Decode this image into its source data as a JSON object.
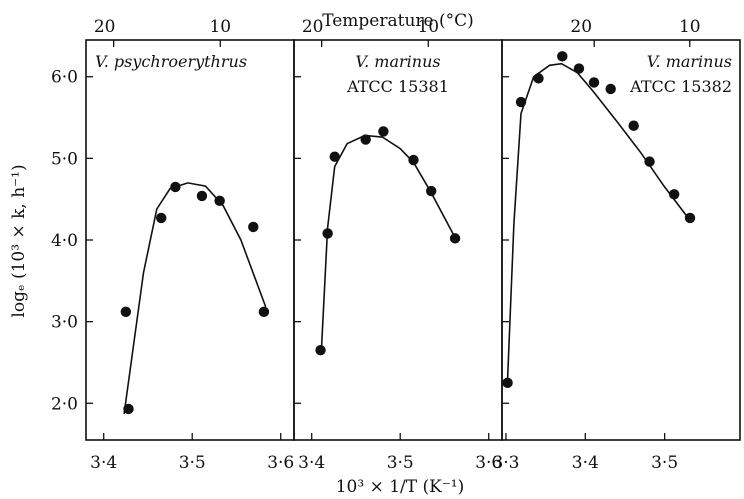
{
  "figure": {
    "top_axis_title": "Temperature (°C)",
    "bottom_axis_title": "10³ × 1/T (K⁻¹)",
    "y_axis_title": "logₑ (10³ × k, h⁻¹)"
  },
  "chart_data": [
    {
      "type": "scatter",
      "panel_label": [
        "V. psychroerythrus"
      ],
      "xlabel": "10³ × 1/T (K⁻¹)",
      "ylabel": "logₑ (10³ × k, h⁻¹)",
      "top_xlabel": "Temperature (°C)",
      "xlim": [
        3.38,
        3.615
      ],
      "ylim": [
        1.55,
        6.45
      ],
      "x_ticks": [
        3.4,
        3.5,
        3.6
      ],
      "x_tick_labels": [
        "3·4",
        "3·5",
        "3·6"
      ],
      "y_ticks": [
        2.0,
        3.0,
        4.0,
        5.0,
        6.0
      ],
      "y_tick_labels": [
        "2·0",
        "3·0",
        "4·0",
        "5·0",
        "6·0"
      ],
      "top_ticks": [
        20,
        10
      ],
      "top_tick_labels": [
        "20",
        "10"
      ],
      "points": {
        "x": [
          3.425,
          3.428,
          3.465,
          3.481,
          3.511,
          3.531,
          3.569,
          3.581
        ],
        "y": [
          3.12,
          1.93,
          4.27,
          4.65,
          4.54,
          4.48,
          4.16,
          3.12
        ]
      },
      "curve": {
        "x": [
          3.423,
          3.445,
          3.46,
          3.475,
          3.495,
          3.515,
          3.535,
          3.555,
          3.583
        ],
        "y": [
          1.87,
          3.6,
          4.38,
          4.63,
          4.7,
          4.66,
          4.42,
          4.0,
          3.18
        ]
      }
    },
    {
      "type": "scatter",
      "panel_label": [
        "V. marinus",
        "ATCC 15381"
      ],
      "xlabel": "10³ × 1/T (K⁻¹)",
      "ylabel": "logₑ (10³ × k, h⁻¹)",
      "top_xlabel": "Temperature (°C)",
      "xlim": [
        3.38,
        3.615
      ],
      "ylim": [
        1.55,
        6.45
      ],
      "x_ticks": [
        3.4,
        3.5,
        3.6
      ],
      "x_tick_labels": [
        "3·4",
        "3·5",
        "3·6"
      ],
      "top_ticks": [
        20,
        10
      ],
      "top_tick_labels": [
        "20",
        "10"
      ],
      "points": {
        "x": [
          3.41,
          3.418,
          3.426,
          3.461,
          3.481,
          3.515,
          3.535,
          3.562
        ],
        "y": [
          2.65,
          4.08,
          5.02,
          5.23,
          5.33,
          4.98,
          4.6,
          4.02
        ]
      },
      "curve": {
        "x": [
          3.411,
          3.418,
          3.426,
          3.44,
          3.46,
          3.48,
          3.5,
          3.515,
          3.535,
          3.562
        ],
        "y": [
          2.65,
          4.15,
          4.9,
          5.18,
          5.28,
          5.26,
          5.12,
          4.95,
          4.58,
          4.03
        ]
      }
    },
    {
      "type": "scatter",
      "panel_label": [
        "V. marinus",
        "ATCC 15382"
      ],
      "xlabel": "10³ × 1/T (K⁻¹)",
      "ylabel": "logₑ (10³ × k, h⁻¹)",
      "top_xlabel": "Temperature (°C)",
      "xlim": [
        3.295,
        3.595
      ],
      "ylim": [
        1.55,
        6.45
      ],
      "x_ticks": [
        3.3,
        3.4,
        3.5
      ],
      "x_tick_labels": [
        "3·3",
        "3·4",
        "3·5"
      ],
      "top_ticks": [
        20,
        10
      ],
      "top_tick_labels": [
        "20",
        "10"
      ],
      "points": {
        "x": [
          3.302,
          3.319,
          3.341,
          3.371,
          3.392,
          3.411,
          3.432,
          3.461,
          3.481,
          3.512,
          3.532
        ],
        "y": [
          2.25,
          5.69,
          5.98,
          6.25,
          6.1,
          5.93,
          5.85,
          5.4,
          4.96,
          4.56,
          4.27
        ]
      },
      "curve": {
        "x": [
          3.302,
          3.31,
          3.319,
          3.335,
          3.355,
          3.37,
          3.39,
          3.41,
          3.44,
          3.47,
          3.5,
          3.532
        ],
        "y": [
          2.3,
          4.2,
          5.55,
          6.0,
          6.14,
          6.16,
          6.05,
          5.82,
          5.45,
          5.07,
          4.65,
          4.24
        ]
      }
    }
  ]
}
